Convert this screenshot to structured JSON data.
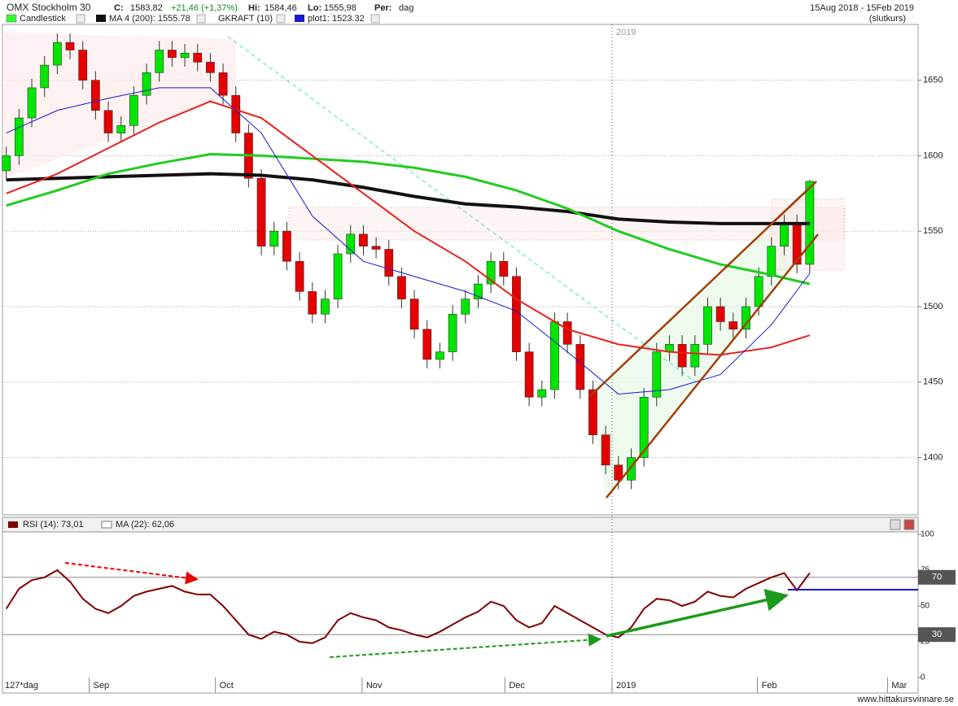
{
  "header": {
    "title": "OMX Stockholm 30",
    "close_label": "C:",
    "close": "1583,82",
    "change": "+21,46 (+1,37%)",
    "hi_label": "Hi:",
    "hi": "1584,46",
    "lo_label": "Lo:",
    "lo": "1555,98",
    "per_label": "Per:",
    "per": "dag",
    "range": "15Aug 2018 - 15Feb 2019",
    "mode": "(slutkurs)"
  },
  "chart_data": [
    {
      "type": "candlestick",
      "name": "Candlestick",
      "legend_color": "#33ff33",
      "indicator_label": "GKRAFT (10)",
      "up_color": "#00e600",
      "down_color": "#e60000",
      "xlim": [
        -0.3,
        71.5
      ],
      "xticks": [
        {
          "value": 6.5,
          "label": "Sep"
        },
        {
          "value": 16.4,
          "label": "Oct"
        },
        {
          "value": 27.9,
          "label": "Nov"
        },
        {
          "value": 39.1,
          "label": "Dec"
        },
        {
          "value": 47.5,
          "label": "2019"
        },
        {
          "value": 58.9,
          "label": "Feb"
        },
        {
          "value": 69.1,
          "label": "Mar"
        }
      ],
      "x_label": "127*dag",
      "divider": {
        "value": 47.5,
        "label": "2019"
      },
      "ylim": [
        1362,
        1687
      ],
      "yticks": [
        1400,
        1450,
        1500,
        1550,
        1600,
        1650
      ],
      "grid": true,
      "open": [
        1590,
        1600,
        1625,
        1645,
        1660,
        1675,
        1670,
        1650,
        1630,
        1615,
        1620,
        1640,
        1655,
        1670,
        1665,
        1668,
        1662,
        1655,
        1640,
        1615,
        1585,
        1540,
        1550,
        1530,
        1510,
        1495,
        1505,
        1535,
        1548,
        1540,
        1538,
        1520,
        1505,
        1485,
        1465,
        1470,
        1495,
        1505,
        1515,
        1530,
        1520,
        1470,
        1440,
        1445,
        1490,
        1475,
        1445,
        1415,
        1395,
        1385,
        1400,
        1440,
        1470,
        1475,
        1460,
        1475,
        1500,
        1490,
        1485,
        1500,
        1520,
        1540,
        1555,
        1528
      ],
      "high": [
        1606,
        1631,
        1651,
        1666,
        1681,
        1681,
        1676,
        1656,
        1636,
        1626,
        1646,
        1661,
        1676,
        1676,
        1674,
        1674,
        1668,
        1661,
        1646,
        1621,
        1591,
        1556,
        1556,
        1536,
        1516,
        1511,
        1541,
        1554,
        1554,
        1546,
        1544,
        1526,
        1511,
        1491,
        1476,
        1501,
        1511,
        1521,
        1536,
        1536,
        1526,
        1476,
        1451,
        1496,
        1496,
        1481,
        1451,
        1421,
        1401,
        1406,
        1446,
        1476,
        1481,
        1481,
        1481,
        1506,
        1506,
        1496,
        1506,
        1526,
        1546,
        1561,
        1561,
        1584
      ],
      "low": [
        1584,
        1594,
        1619,
        1639,
        1654,
        1664,
        1644,
        1624,
        1609,
        1609,
        1614,
        1634,
        1649,
        1659,
        1659,
        1656,
        1649,
        1634,
        1609,
        1579,
        1534,
        1534,
        1524,
        1504,
        1489,
        1489,
        1499,
        1529,
        1534,
        1532,
        1514,
        1499,
        1479,
        1459,
        1459,
        1464,
        1489,
        1499,
        1509,
        1514,
        1464,
        1434,
        1434,
        1439,
        1469,
        1439,
        1409,
        1389,
        1379,
        1379,
        1394,
        1434,
        1464,
        1454,
        1454,
        1469,
        1484,
        1479,
        1479,
        1494,
        1514,
        1534,
        1522,
        1522
      ],
      "close": [
        1600,
        1625,
        1645,
        1660,
        1675,
        1670,
        1650,
        1630,
        1615,
        1620,
        1640,
        1655,
        1670,
        1665,
        1668,
        1662,
        1655,
        1640,
        1615,
        1585,
        1540,
        1550,
        1530,
        1510,
        1495,
        1505,
        1535,
        1548,
        1540,
        1538,
        1520,
        1505,
        1485,
        1465,
        1470,
        1495,
        1505,
        1515,
        1530,
        1520,
        1470,
        1440,
        1445,
        1490,
        1475,
        1445,
        1415,
        1395,
        1385,
        1400,
        1440,
        1470,
        1475,
        1460,
        1475,
        1500,
        1490,
        1485,
        1500,
        1520,
        1540,
        1555,
        1528,
        1583
      ],
      "series": [
        {
          "name": "MA 4 (200): 1555.78",
          "color": "#111111",
          "width": 4,
          "x": [
            0,
            4,
            8,
            12,
            16,
            20,
            24,
            28,
            32,
            36,
            40,
            44,
            48,
            52,
            56,
            60,
            63
          ],
          "values": [
            1584,
            1585,
            1586,
            1587,
            1588,
            1587,
            1584,
            1579,
            1573,
            1568,
            1566,
            1563,
            1558,
            1556,
            1555,
            1555,
            1555
          ]
        },
        {
          "color": "#22cc22",
          "width": 3,
          "x": [
            0,
            4,
            8,
            12,
            16,
            20,
            24,
            28,
            32,
            36,
            40,
            44,
            48,
            52,
            56,
            60,
            63
          ],
          "values": [
            1567,
            1577,
            1588,
            1595,
            1601,
            1600,
            1598,
            1596,
            1592,
            1586,
            1577,
            1565,
            1550,
            1538,
            1528,
            1521,
            1515
          ]
        },
        {
          "color": "#e8201a",
          "width": 2,
          "x": [
            0,
            4,
            8,
            12,
            16,
            20,
            24,
            28,
            32,
            36,
            40,
            44,
            48,
            52,
            56,
            60,
            63
          ],
          "values": [
            1575,
            1588,
            1605,
            1622,
            1636,
            1625,
            1600,
            1575,
            1550,
            1530,
            1505,
            1485,
            1475,
            1470,
            1468,
            1473,
            1481
          ]
        },
        {
          "name": "plot1: 1523.32",
          "color": "#1a1acc",
          "width": 1,
          "x": [
            0,
            4,
            8,
            12,
            16,
            20,
            24,
            28,
            32,
            36,
            40,
            44,
            48,
            52,
            56,
            60,
            63
          ],
          "values": [
            1615,
            1630,
            1638,
            1645,
            1645,
            1615,
            1560,
            1530,
            1520,
            1510,
            1497,
            1470,
            1442,
            1445,
            1455,
            1488,
            1522
          ]
        }
      ]
    },
    {
      "type": "line",
      "ma_label": "MA (22): 62,06",
      "xlim": [
        -0.3,
        71.5
      ],
      "ylim": [
        0,
        100
      ],
      "yticks": [
        0,
        25,
        50,
        75,
        100
      ],
      "levels": [
        70,
        30
      ],
      "series": [
        {
          "name": "RSI (14): 73,01",
          "color": "#800000",
          "values": [
            48,
            62,
            68,
            70,
            75,
            67,
            55,
            48,
            45,
            50,
            57,
            60,
            62,
            64,
            60,
            58,
            58,
            50,
            40,
            30,
            27,
            32,
            30,
            25,
            24,
            28,
            40,
            45,
            42,
            40,
            35,
            33,
            30,
            28,
            32,
            37,
            42,
            46,
            53,
            50,
            40,
            35,
            38,
            50,
            45,
            40,
            35,
            30,
            28,
            35,
            48,
            55,
            54,
            50,
            53,
            60,
            57,
            56,
            62,
            66,
            70,
            73,
            61,
            73
          ]
        }
      ]
    }
  ],
  "footer": {
    "watermark": "www.hittakursvinnare.se"
  }
}
